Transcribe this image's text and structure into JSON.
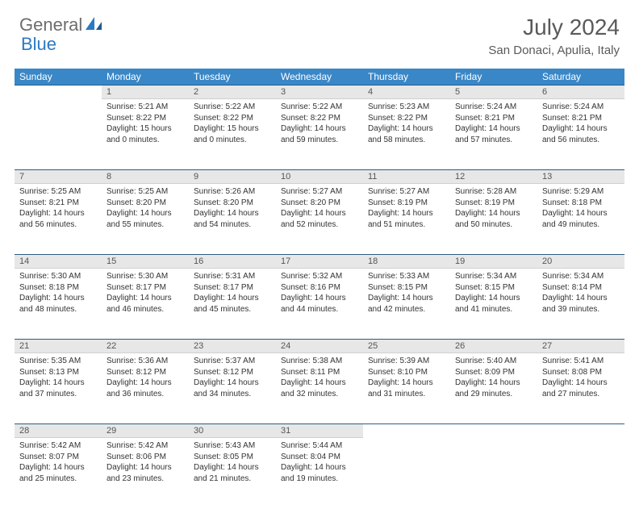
{
  "logo": {
    "part1": "General",
    "part2": "Blue"
  },
  "title": "July 2024",
  "location": "San Donaci, Apulia, Italy",
  "colors": {
    "header_bg": "#3a87c7",
    "daynum_bg": "#e7e7e7",
    "row_divider": "#2b5d85",
    "logo_gray": "#6d6d6d",
    "logo_blue": "#2b79c2"
  },
  "weekdays": [
    "Sunday",
    "Monday",
    "Tuesday",
    "Wednesday",
    "Thursday",
    "Friday",
    "Saturday"
  ],
  "weeks": [
    {
      "nums": [
        "",
        "1",
        "2",
        "3",
        "4",
        "5",
        "6"
      ],
      "cells": [
        null,
        {
          "sunrise": "5:21 AM",
          "sunset": "8:22 PM",
          "daylight": "15 hours and 0 minutes."
        },
        {
          "sunrise": "5:22 AM",
          "sunset": "8:22 PM",
          "daylight": "15 hours and 0 minutes."
        },
        {
          "sunrise": "5:22 AM",
          "sunset": "8:22 PM",
          "daylight": "14 hours and 59 minutes."
        },
        {
          "sunrise": "5:23 AM",
          "sunset": "8:22 PM",
          "daylight": "14 hours and 58 minutes."
        },
        {
          "sunrise": "5:24 AM",
          "sunset": "8:21 PM",
          "daylight": "14 hours and 57 minutes."
        },
        {
          "sunrise": "5:24 AM",
          "sunset": "8:21 PM",
          "daylight": "14 hours and 56 minutes."
        }
      ]
    },
    {
      "nums": [
        "7",
        "8",
        "9",
        "10",
        "11",
        "12",
        "13"
      ],
      "cells": [
        {
          "sunrise": "5:25 AM",
          "sunset": "8:21 PM",
          "daylight": "14 hours and 56 minutes."
        },
        {
          "sunrise": "5:25 AM",
          "sunset": "8:20 PM",
          "daylight": "14 hours and 55 minutes."
        },
        {
          "sunrise": "5:26 AM",
          "sunset": "8:20 PM",
          "daylight": "14 hours and 54 minutes."
        },
        {
          "sunrise": "5:27 AM",
          "sunset": "8:20 PM",
          "daylight": "14 hours and 52 minutes."
        },
        {
          "sunrise": "5:27 AM",
          "sunset": "8:19 PM",
          "daylight": "14 hours and 51 minutes."
        },
        {
          "sunrise": "5:28 AM",
          "sunset": "8:19 PM",
          "daylight": "14 hours and 50 minutes."
        },
        {
          "sunrise": "5:29 AM",
          "sunset": "8:18 PM",
          "daylight": "14 hours and 49 minutes."
        }
      ]
    },
    {
      "nums": [
        "14",
        "15",
        "16",
        "17",
        "18",
        "19",
        "20"
      ],
      "cells": [
        {
          "sunrise": "5:30 AM",
          "sunset": "8:18 PM",
          "daylight": "14 hours and 48 minutes."
        },
        {
          "sunrise": "5:30 AM",
          "sunset": "8:17 PM",
          "daylight": "14 hours and 46 minutes."
        },
        {
          "sunrise": "5:31 AM",
          "sunset": "8:17 PM",
          "daylight": "14 hours and 45 minutes."
        },
        {
          "sunrise": "5:32 AM",
          "sunset": "8:16 PM",
          "daylight": "14 hours and 44 minutes."
        },
        {
          "sunrise": "5:33 AM",
          "sunset": "8:15 PM",
          "daylight": "14 hours and 42 minutes."
        },
        {
          "sunrise": "5:34 AM",
          "sunset": "8:15 PM",
          "daylight": "14 hours and 41 minutes."
        },
        {
          "sunrise": "5:34 AM",
          "sunset": "8:14 PM",
          "daylight": "14 hours and 39 minutes."
        }
      ]
    },
    {
      "nums": [
        "21",
        "22",
        "23",
        "24",
        "25",
        "26",
        "27"
      ],
      "cells": [
        {
          "sunrise": "5:35 AM",
          "sunset": "8:13 PM",
          "daylight": "14 hours and 37 minutes."
        },
        {
          "sunrise": "5:36 AM",
          "sunset": "8:12 PM",
          "daylight": "14 hours and 36 minutes."
        },
        {
          "sunrise": "5:37 AM",
          "sunset": "8:12 PM",
          "daylight": "14 hours and 34 minutes."
        },
        {
          "sunrise": "5:38 AM",
          "sunset": "8:11 PM",
          "daylight": "14 hours and 32 minutes."
        },
        {
          "sunrise": "5:39 AM",
          "sunset": "8:10 PM",
          "daylight": "14 hours and 31 minutes."
        },
        {
          "sunrise": "5:40 AM",
          "sunset": "8:09 PM",
          "daylight": "14 hours and 29 minutes."
        },
        {
          "sunrise": "5:41 AM",
          "sunset": "8:08 PM",
          "daylight": "14 hours and 27 minutes."
        }
      ]
    },
    {
      "nums": [
        "28",
        "29",
        "30",
        "31",
        "",
        "",
        ""
      ],
      "cells": [
        {
          "sunrise": "5:42 AM",
          "sunset": "8:07 PM",
          "daylight": "14 hours and 25 minutes."
        },
        {
          "sunrise": "5:42 AM",
          "sunset": "8:06 PM",
          "daylight": "14 hours and 23 minutes."
        },
        {
          "sunrise": "5:43 AM",
          "sunset": "8:05 PM",
          "daylight": "14 hours and 21 minutes."
        },
        {
          "sunrise": "5:44 AM",
          "sunset": "8:04 PM",
          "daylight": "14 hours and 19 minutes."
        },
        null,
        null,
        null
      ]
    }
  ],
  "labels": {
    "sunrise": "Sunrise:",
    "sunset": "Sunset:",
    "daylight": "Daylight:"
  }
}
